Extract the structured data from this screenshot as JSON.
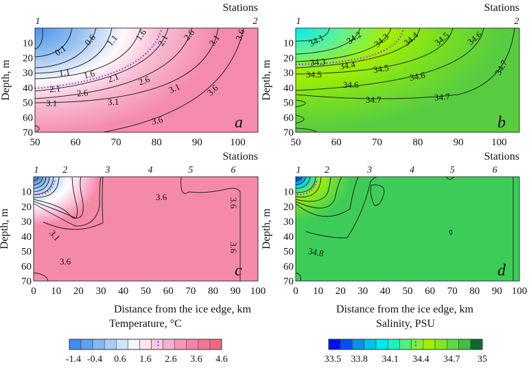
{
  "chart_data": {
    "type": "heatmap",
    "subtype": "contour",
    "panels": [
      {
        "id": "a",
        "letter": "a",
        "variable": "temperature",
        "stations_title": "Stations",
        "stations": [
          {
            "label": "1",
            "x": 50
          },
          {
            "label": "2",
            "x": 105
          }
        ],
        "xlim": [
          50,
          105
        ],
        "ylim": [
          0,
          70
        ],
        "xticks": [
          50,
          60,
          70,
          80,
          90,
          100
        ],
        "yticks": [
          10,
          20,
          30,
          40,
          50,
          60,
          70
        ],
        "ylabel": "Depth, m",
        "contour_levels": [
          0.1,
          0.6,
          1.1,
          1.6,
          2.1,
          2.6,
          3.1,
          3.6
        ],
        "highlight_level": 2.1,
        "contour_labels": [
          "0.1",
          "0.6",
          "1.1",
          "1.6",
          "2.1",
          "2.6",
          "3.1",
          "3.6",
          "1.1",
          "1.6",
          "2.1",
          "2.1",
          "2.6",
          "2.6",
          "3.1",
          "3.1",
          "3.1",
          "3.6",
          "3.6"
        ]
      },
      {
        "id": "b",
        "letter": "b",
        "variable": "salinity",
        "stations_title": "Stations",
        "stations": [
          {
            "label": "1",
            "x": 50
          },
          {
            "label": "2",
            "x": 105
          }
        ],
        "xlim": [
          50,
          105
        ],
        "ylim": [
          0,
          70
        ],
        "xticks": [
          50,
          60,
          70,
          80,
          90,
          100
        ],
        "yticks": [
          10,
          20,
          30,
          40,
          50,
          60,
          70
        ],
        "ylabel": "Depth, m",
        "contour_levels": [
          34.1,
          34.2,
          34.3,
          34.4,
          34.5,
          34.6,
          34.7
        ],
        "highlight_level": 34.35,
        "contour_labels": [
          "34.1",
          "34.2",
          "34.3",
          "34.4",
          "34.5",
          "34.6",
          "34.3",
          "34.4",
          "34.5",
          "34.5",
          "34.6",
          "34.6",
          "34.7",
          "34.7",
          "34.7"
        ]
      },
      {
        "id": "c",
        "letter": "c",
        "variable": "temperature",
        "stations_title": "Stations",
        "stations": [
          {
            "label": "1",
            "x": 0
          },
          {
            "label": "2",
            "x": 14
          },
          {
            "label": "3",
            "x": 33
          },
          {
            "label": "4",
            "x": 52
          },
          {
            "label": "5",
            "x": 70
          },
          {
            "label": "6",
            "x": 89
          }
        ],
        "xlim": [
          0,
          100
        ],
        "ylim": [
          0,
          70
        ],
        "xticks": [
          0,
          10,
          20,
          30,
          40,
          50,
          60,
          70,
          80,
          90,
          100
        ],
        "yticks": [
          10,
          20,
          30,
          40,
          50,
          60,
          70
        ],
        "ylabel": "Depth, m",
        "xlabel": "Distance from the ice edge, km",
        "contour_labels": [
          "3.1",
          "3.6",
          "3.6",
          "3.6",
          "3.6"
        ]
      },
      {
        "id": "d",
        "letter": "d",
        "variable": "salinity",
        "stations_title": "Stations",
        "stations": [
          {
            "label": "1",
            "x": 0
          },
          {
            "label": "2",
            "x": 14
          },
          {
            "label": "3",
            "x": 33
          },
          {
            "label": "4",
            "x": 52
          },
          {
            "label": "5",
            "x": 70
          },
          {
            "label": "6",
            "x": 89
          }
        ],
        "xlim": [
          0,
          100
        ],
        "ylim": [
          0,
          70
        ],
        "xticks": [
          0,
          10,
          20,
          30,
          40,
          50,
          60,
          70,
          80,
          90,
          100
        ],
        "yticks": [
          10,
          20,
          30,
          40,
          50,
          60,
          70
        ],
        "ylabel": "Depth, m",
        "xlabel": "Distance from the ice edge, km",
        "contour_labels": [
          "34.8"
        ]
      }
    ],
    "colorbars": [
      {
        "title": "Temperature, °C",
        "ticks": [
          "-1.4",
          "-0.4",
          "0.6",
          "1.6",
          "2.6",
          "3.6",
          "4.6"
        ],
        "range": [
          -1.4,
          4.6
        ],
        "marker": 2.1,
        "colors": [
          "#3d8ef0",
          "#5fa2f2",
          "#84b8f5",
          "#a9cdf8",
          "#cfe3fb",
          "#f2f6fd",
          "#fbe3ef",
          "#fbcbe0",
          "#f9b1cf",
          "#f796bd",
          "#f682aa",
          "#f57592",
          "#f3687c"
        ]
      },
      {
        "title": "Salinity, PSU",
        "ticks": [
          "33.5",
          "33.8",
          "34.1",
          "34.4",
          "34.7",
          "35"
        ],
        "range": [
          33.5,
          35
        ],
        "marker": 34.35,
        "colors": [
          "#0010f0",
          "#0050f0",
          "#0090f0",
          "#00c0f0",
          "#00e8f0",
          "#20f0c0",
          "#50f080",
          "#80f040",
          "#a0f000",
          "#80e820",
          "#60d840",
          "#40c040",
          "#106830"
        ]
      }
    ]
  }
}
